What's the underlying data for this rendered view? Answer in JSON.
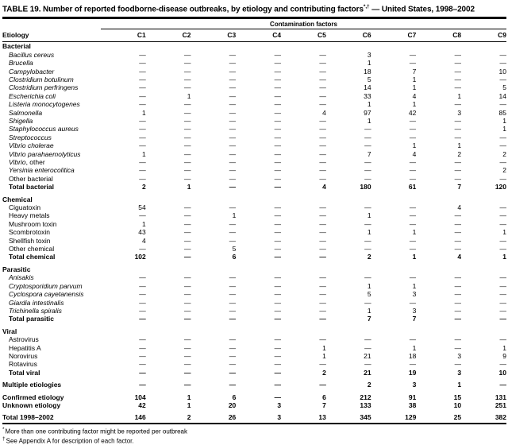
{
  "title": {
    "text": "TABLE 19. Number of reported foodborne-disease outbreaks, by etiology and contributing factors",
    "superscript": "*,†",
    "suffix": " — United States, 1998–2002"
  },
  "table": {
    "group_header": "Contamination factors",
    "row_header_label": "Etiology",
    "columns": [
      "C1",
      "C2",
      "C3",
      "C4",
      "C5",
      "C6",
      "C7",
      "C8",
      "C9"
    ],
    "rows": [
      {
        "kind": "section",
        "em": "",
        "label": "Bacterial"
      },
      {
        "kind": "data",
        "em": "Bacillus cereus",
        "label": "",
        "values": [
          "—",
          "—",
          "—",
          "—",
          "—",
          "3",
          "—",
          "—",
          "—"
        ]
      },
      {
        "kind": "data",
        "em": "Brucella",
        "label": "",
        "values": [
          "—",
          "—",
          "—",
          "—",
          "—",
          "1",
          "—",
          "—",
          "—"
        ]
      },
      {
        "kind": "data",
        "em": "Campylobacter",
        "label": "",
        "values": [
          "—",
          "—",
          "—",
          "—",
          "—",
          "18",
          "7",
          "—",
          "10"
        ]
      },
      {
        "kind": "data",
        "em": "Clostridium botulinum",
        "label": "",
        "values": [
          "—",
          "—",
          "—",
          "—",
          "—",
          "5",
          "1",
          "—",
          "—"
        ]
      },
      {
        "kind": "data",
        "em": "Clostridium perfringens",
        "label": "",
        "values": [
          "—",
          "—",
          "—",
          "—",
          "—",
          "14",
          "1",
          "—",
          "5"
        ]
      },
      {
        "kind": "data",
        "em": "Escherichia coli",
        "label": "",
        "values": [
          "—",
          "1",
          "—",
          "—",
          "—",
          "33",
          "4",
          "1",
          "14"
        ]
      },
      {
        "kind": "data",
        "em": "Listeria monocytogenes",
        "label": "",
        "values": [
          "—",
          "—",
          "—",
          "—",
          "—",
          "1",
          "1",
          "—",
          "—"
        ]
      },
      {
        "kind": "data",
        "em": "Salmonella",
        "label": "",
        "values": [
          "1",
          "—",
          "—",
          "—",
          "4",
          "97",
          "42",
          "3",
          "85"
        ]
      },
      {
        "kind": "data",
        "em": "Shigella",
        "label": "",
        "values": [
          "—",
          "—",
          "—",
          "—",
          "—",
          "1",
          "—",
          "—",
          "1"
        ]
      },
      {
        "kind": "data",
        "em": "Staphylococcus aureus",
        "label": "",
        "values": [
          "—",
          "—",
          "—",
          "—",
          "—",
          "—",
          "—",
          "—",
          "1"
        ]
      },
      {
        "kind": "data",
        "em": "Streptococcus",
        "label": "",
        "values": [
          "—",
          "—",
          "—",
          "—",
          "—",
          "—",
          "—",
          "—",
          "—"
        ]
      },
      {
        "kind": "data",
        "em": "Vibrio cholerae",
        "label": "",
        "values": [
          "—",
          "—",
          "—",
          "—",
          "—",
          "—",
          "1",
          "1",
          "—"
        ]
      },
      {
        "kind": "data",
        "em": "Vibrio parahaemolyticus",
        "label": "",
        "values": [
          "1",
          "—",
          "—",
          "—",
          "—",
          "7",
          "4",
          "2",
          "2"
        ]
      },
      {
        "kind": "data",
        "em": "Vibrio",
        "label": ", other",
        "values": [
          "—",
          "—",
          "—",
          "—",
          "—",
          "—",
          "—",
          "—",
          "—"
        ]
      },
      {
        "kind": "data",
        "em": "Yersinia enterocolitica",
        "label": "",
        "values": [
          "—",
          "—",
          "—",
          "—",
          "—",
          "—",
          "—",
          "—",
          "2"
        ]
      },
      {
        "kind": "data",
        "em": "",
        "label": "Other bacterial",
        "values": [
          "—",
          "—",
          "—",
          "—",
          "—",
          "—",
          "—",
          "—",
          "—"
        ]
      },
      {
        "kind": "total",
        "em": "",
        "label": "Total bacterial",
        "values": [
          "2",
          "1",
          "—",
          "—",
          "4",
          "180",
          "61",
          "7",
          "120"
        ]
      },
      {
        "kind": "gap"
      },
      {
        "kind": "section",
        "em": "",
        "label": "Chemical"
      },
      {
        "kind": "data",
        "em": "",
        "label": "Ciguatoxin",
        "values": [
          "54",
          "—",
          "—",
          "—",
          "—",
          "—",
          "—",
          "4",
          "—"
        ]
      },
      {
        "kind": "data",
        "em": "",
        "label": "Heavy metals",
        "values": [
          "—",
          "—",
          "1",
          "—",
          "—",
          "1",
          "—",
          "—",
          "—"
        ]
      },
      {
        "kind": "data",
        "em": "",
        "label": "Mushroom toxin",
        "values": [
          "1",
          "—",
          "—",
          "—",
          "—",
          "—",
          "—",
          "—",
          "—"
        ]
      },
      {
        "kind": "data",
        "em": "",
        "label": "Scombrotoxin",
        "values": [
          "43",
          "—",
          "—",
          "—",
          "—",
          "1",
          "1",
          "—",
          "1"
        ]
      },
      {
        "kind": "data",
        "em": "",
        "label": "Shellfish toxin",
        "values": [
          "4",
          "—",
          "—",
          "—",
          "—",
          "—",
          "—",
          "—",
          "—"
        ]
      },
      {
        "kind": "data",
        "em": "",
        "label": "Other chemical",
        "values": [
          "—",
          "—",
          "5",
          "—",
          "—",
          "—",
          "—",
          "—",
          "—"
        ]
      },
      {
        "kind": "total",
        "em": "",
        "label": "Total chemical",
        "values": [
          "102",
          "—",
          "6",
          "—",
          "—",
          "2",
          "1",
          "4",
          "1"
        ]
      },
      {
        "kind": "gap"
      },
      {
        "kind": "section",
        "em": "",
        "label": "Parasitic"
      },
      {
        "kind": "data",
        "em": "Anisakis",
        "label": "",
        "values": [
          "—",
          "—",
          "—",
          "—",
          "—",
          "—",
          "—",
          "—",
          "—"
        ]
      },
      {
        "kind": "data",
        "em": "Cryptosporidium parvum",
        "label": "",
        "values": [
          "—",
          "—",
          "—",
          "—",
          "—",
          "1",
          "1",
          "—",
          "—"
        ]
      },
      {
        "kind": "data",
        "em": "Cyclospora cayetanensis",
        "label": "",
        "values": [
          "—",
          "—",
          "—",
          "—",
          "—",
          "5",
          "3",
          "—",
          "—"
        ]
      },
      {
        "kind": "data",
        "em": "Giardia intestinalis",
        "label": "",
        "values": [
          "—",
          "—",
          "—",
          "—",
          "—",
          "—",
          "—",
          "—",
          "—"
        ]
      },
      {
        "kind": "data",
        "em": "Trichinella spiralis",
        "label": "",
        "values": [
          "—",
          "—",
          "—",
          "—",
          "—",
          "1",
          "3",
          "—",
          "—"
        ]
      },
      {
        "kind": "total",
        "em": "",
        "label": "Total parasitic",
        "values": [
          "—",
          "—",
          "—",
          "—",
          "—",
          "7",
          "7",
          "—",
          "—"
        ]
      },
      {
        "kind": "gap"
      },
      {
        "kind": "section",
        "em": "",
        "label": "Viral"
      },
      {
        "kind": "data",
        "em": "",
        "label": "Astrovirus",
        "values": [
          "—",
          "—",
          "—",
          "—",
          "—",
          "—",
          "—",
          "—",
          "—"
        ]
      },
      {
        "kind": "data",
        "em": "",
        "label": "Hepatitis A",
        "values": [
          "—",
          "—",
          "—",
          "—",
          "1",
          "—",
          "1",
          "—",
          "1"
        ]
      },
      {
        "kind": "data",
        "em": "",
        "label": "Norovirus",
        "values": [
          "—",
          "—",
          "—",
          "—",
          "1",
          "21",
          "18",
          "3",
          "9"
        ]
      },
      {
        "kind": "data",
        "em": "",
        "label": "Rotavirus",
        "values": [
          "—",
          "—",
          "—",
          "—",
          "—",
          "—",
          "—",
          "—",
          "—"
        ]
      },
      {
        "kind": "total",
        "em": "",
        "label": "Total viral",
        "values": [
          "—",
          "—",
          "—",
          "—",
          "2",
          "21",
          "19",
          "3",
          "10"
        ]
      },
      {
        "kind": "gap"
      },
      {
        "kind": "standalone",
        "em": "",
        "label": "Multiple etiologies",
        "values": [
          "—",
          "—",
          "—",
          "—",
          "—",
          "2",
          "3",
          "1",
          "—"
        ]
      },
      {
        "kind": "gap"
      },
      {
        "kind": "standalone",
        "em": "",
        "label": "Confirmed etiology",
        "values": [
          "104",
          "1",
          "6",
          "—",
          "6",
          "212",
          "91",
          "15",
          "131"
        ]
      },
      {
        "kind": "standalone",
        "em": "",
        "label": "Unknown etiology",
        "values": [
          "42",
          "1",
          "20",
          "3",
          "7",
          "133",
          "38",
          "10",
          "251"
        ]
      },
      {
        "kind": "gap"
      },
      {
        "kind": "standalone",
        "em": "",
        "label": "Total 1998–2002",
        "values": [
          "146",
          "2",
          "26",
          "3",
          "13",
          "345",
          "129",
          "25",
          "382"
        ]
      }
    ]
  },
  "footnotes": [
    {
      "marker": "*",
      "text": "More than one contributing factor might be reported per outbreak"
    },
    {
      "marker": "†",
      "text": "See Appendix A for description of each factor."
    }
  ]
}
